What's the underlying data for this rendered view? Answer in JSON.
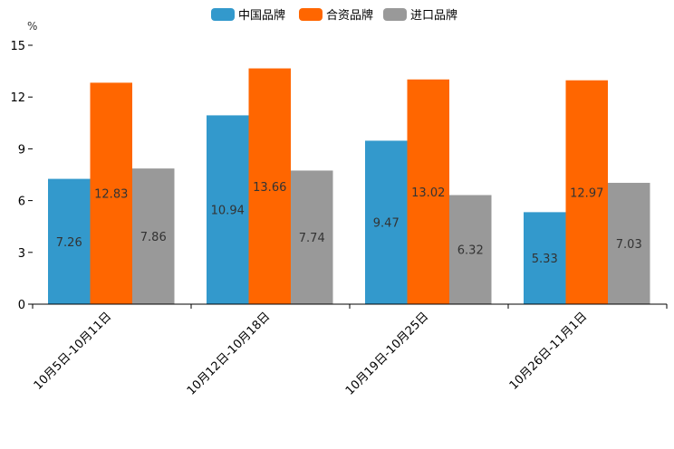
{
  "chart_data": {
    "type": "bar",
    "title": "",
    "xlabel": "",
    "ylabel": "%",
    "ylim": [
      0,
      15
    ],
    "yticks": [
      0,
      3,
      6,
      9,
      12,
      15
    ],
    "grid": false,
    "legend_position": "top-center",
    "categories": [
      "10月5日-10月11日",
      "10月12日-10月18日",
      "10月19日-10月25日",
      "10月26日-11月1日"
    ],
    "series": [
      {
        "name": "中国品牌",
        "color": "#3399CC",
        "values": [
          7.26,
          10.94,
          9.47,
          5.33
        ]
      },
      {
        "name": "合资品牌",
        "color": "#FF6600",
        "values": [
          12.83,
          13.66,
          13.02,
          12.97
        ]
      },
      {
        "name": "进口品牌",
        "color": "#999999",
        "values": [
          7.86,
          7.74,
          6.32,
          7.03
        ]
      }
    ]
  }
}
